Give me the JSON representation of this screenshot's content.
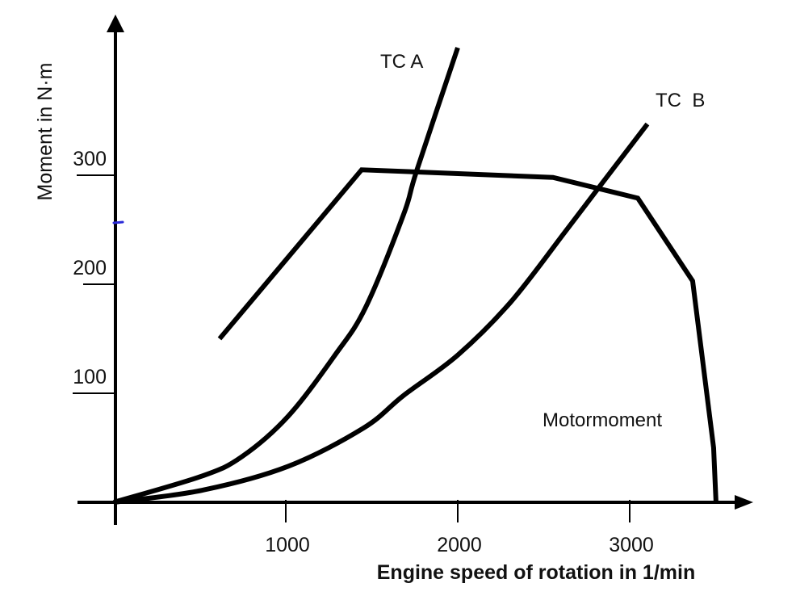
{
  "chart_data": {
    "type": "line",
    "title": "",
    "xlabel": "Engine speed of rotation in 1/min",
    "ylabel": "Moment  in N·m",
    "xlim": [
      0,
      3700
    ],
    "ylim": [
      0,
      440
    ],
    "x_ticks": [
      {
        "value": 1000,
        "label": "1000"
      },
      {
        "value": 2000,
        "label": "2000"
      },
      {
        "value": 3000,
        "label": "3000"
      }
    ],
    "y_ticks": [
      {
        "value": 100,
        "label": "100"
      },
      {
        "value": 200,
        "label": "200"
      },
      {
        "value": 300,
        "label": "300"
      }
    ],
    "grid": false,
    "legend": "none (inline labels)",
    "series": [
      {
        "name": "Motormoment",
        "label": "Motormoment",
        "style": "polyline",
        "color": "#000000",
        "x": [
          615,
          1441,
          2554,
          3047,
          3366,
          3488,
          3502
        ],
        "y": [
          150,
          305,
          298,
          279,
          203,
          50,
          0
        ]
      },
      {
        "name": "TC A",
        "label": "TC A",
        "style": "smooth",
        "color": "#000000",
        "x": [
          0,
          512,
          746,
          1014,
          1286,
          1465,
          1685,
          1761,
          2000
        ],
        "y": [
          0,
          24,
          42,
          79,
          135,
          179,
          264,
          304,
          417
        ]
      },
      {
        "name": "TC B",
        "label": "TC  B",
        "style": "smooth",
        "color": "#000000",
        "x": [
          0,
          512,
          1014,
          1451,
          1685,
          2000,
          2310,
          2624,
          2812,
          3103
        ],
        "y": [
          0,
          11,
          33,
          68,
          98,
          135,
          184,
          248,
          287,
          347
        ]
      }
    ],
    "annotations": [
      {
        "text": "TC A",
        "series": "TC A"
      },
      {
        "text": "TC  B",
        "series": "TC B"
      },
      {
        "text": "Motormoment",
        "series": "Motormoment"
      }
    ]
  }
}
